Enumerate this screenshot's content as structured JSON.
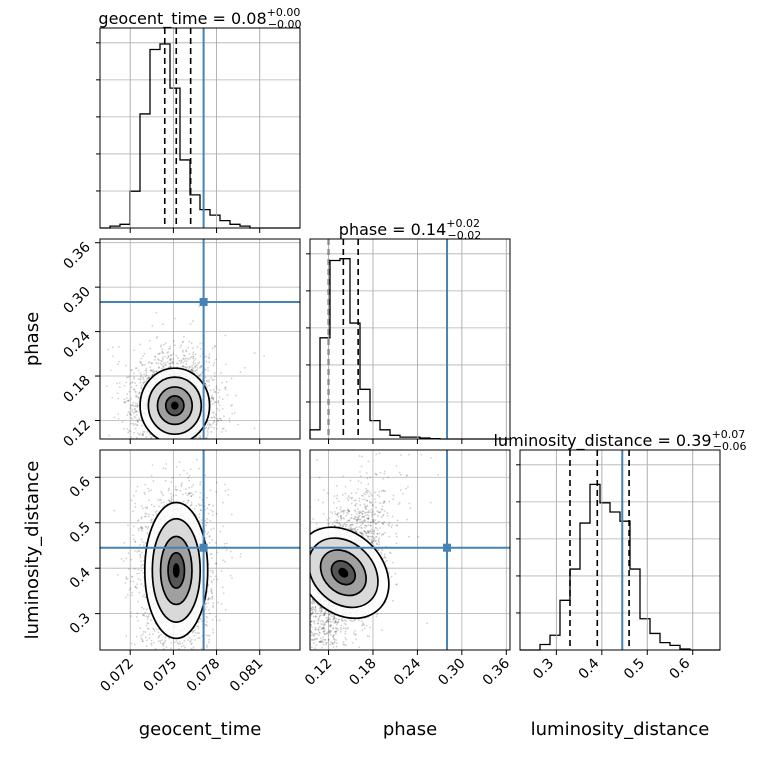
{
  "chart_data": {
    "type": "corner",
    "grid": true,
    "colors": {
      "truth": "#4682b4",
      "hist": "#000000",
      "grid": "#b0b0b0",
      "points": "#000000"
    },
    "parameters": [
      {
        "name": "geocent_time",
        "label": "geocent_time",
        "range": [
          0.0699,
          0.0838
        ],
        "ticks": [
          0.072,
          0.075,
          0.078,
          0.081
        ],
        "tick_labels": [
          "0.072",
          "0.075",
          "0.078",
          "0.081"
        ],
        "truth": 0.0771,
        "median": 0.0752,
        "q_low": 0.0744,
        "q_high": 0.0762,
        "title_main": "geocent_time = 0.08",
        "title_sup": "+0.00",
        "title_sub": "−0.00",
        "hist_values": [
          0,
          0.01,
          0.02,
          0.2,
          0.62,
          0.97,
          1.0,
          0.76,
          0.37,
          0.18,
          0.1,
          0.07,
          0.04,
          0.02,
          0.01,
          0,
          0,
          0,
          0,
          0
        ]
      },
      {
        "name": "phase",
        "label": "phase",
        "range": [
          0.095,
          0.365
        ],
        "ticks": [
          0.12,
          0.18,
          0.24,
          0.3,
          0.36
        ],
        "tick_labels": [
          "0.12",
          "0.18",
          "0.24",
          "0.30",
          "0.36"
        ],
        "truth": 0.28,
        "median": 0.14,
        "q_low": 0.12,
        "q_high": 0.16,
        "title_main": "phase = 0.14",
        "title_sup": "+0.02",
        "title_sub": "−0.02",
        "hist_values": [
          0.05,
          0.55,
          0.97,
          0.98,
          0.63,
          0.27,
          0.1,
          0.05,
          0.02,
          0.01,
          0.01,
          0.005,
          0.002,
          0,
          0,
          0,
          0,
          0,
          0,
          0
        ]
      },
      {
        "name": "luminosity_distance",
        "label": "luminosity_distance",
        "range": [
          0.22,
          0.66
        ],
        "ticks": [
          0.3,
          0.4,
          0.5,
          0.6
        ],
        "tick_labels": [
          "0.3",
          "0.4",
          "0.5",
          "0.6"
        ],
        "truth": 0.445,
        "median": 0.39,
        "q_low": 0.33,
        "q_high": 0.46,
        "title_main": "luminosity_distance = 0.39",
        "title_sup": "+0.07",
        "title_sub": "−0.06",
        "hist_values": [
          0,
          0,
          0.03,
          0.08,
          0.27,
          0.44,
          0.69,
          0.9,
          0.8,
          0.75,
          0.7,
          0.44,
          0.17,
          0.09,
          0.04,
          0.025,
          0.005,
          0,
          0,
          0
        ]
      }
    ],
    "pair_stats": {
      "1_0": {
        "center": [
          0.0751,
          0.14
        ],
        "sd": [
          0.00105,
          0.022
        ],
        "corr": 0.0,
        "n": 2600
      },
      "2_0": {
        "center": [
          0.0752,
          0.395
        ],
        "sd": [
          0.00095,
          0.065
        ],
        "corr": 0.0,
        "n": 2600
      },
      "2_1": {
        "center": [
          0.14,
          0.39
        ],
        "sd": [
          0.022,
          0.065
        ],
        "corr": 0.55,
        "n": 2600
      }
    }
  }
}
